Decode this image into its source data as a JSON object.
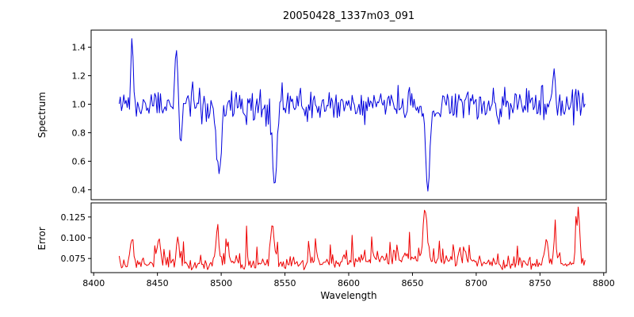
{
  "figure": {
    "title": "20050428_1337m03_091",
    "xlabel": "Wavelength",
    "ylabel_top": "Spectrum",
    "ylabel_bottom": "Error"
  },
  "chart_data": {
    "type": "line",
    "title": "20050428_1337m03_091",
    "xlabel": "Wavelength",
    "legend": "none",
    "grid": false,
    "xlim": [
      8398,
      8802
    ],
    "x_ticks": [
      8400,
      8450,
      8500,
      8550,
      8600,
      8650,
      8700,
      8750,
      8800
    ],
    "x_tick_labels": [
      "8400",
      "8450",
      "8500",
      "8550",
      "8600",
      "8650",
      "8700",
      "8750",
      "8800"
    ],
    "x_start": 8420,
    "x_end": 8786,
    "dx": 0.9,
    "seed": 20050428,
    "panels": [
      {
        "name": "spectrum",
        "ylabel": "Spectrum",
        "color": "#0000dd",
        "linewidth": 1,
        "ylim": [
          0.33,
          1.52
        ],
        "yticks": [
          0.4,
          0.6,
          0.8,
          1.0,
          1.2,
          1.4
        ],
        "ytick_labels": [
          "0.4",
          "0.6",
          "0.8",
          "1.0",
          "1.2",
          "1.4"
        ],
        "baseline": 1.0,
        "noise_sigma": 0.058,
        "skew": 0,
        "clamp": [
          0.36,
          1.47
        ],
        "features": [
          {
            "center": 8430,
            "amp": 0.44,
            "sigma": 0.9
          },
          {
            "center": 8465,
            "amp": 0.4,
            "sigma": 0.9
          },
          {
            "center": 8468.5,
            "amp": -0.27,
            "sigma": 0.9
          },
          {
            "center": 8498,
            "amp": -0.57,
            "sigma": 1.7
          },
          {
            "center": 8542,
            "amp": -0.6,
            "sigma": 1.8
          },
          {
            "center": 8662,
            "amp": -0.63,
            "sigma": 1.7
          },
          {
            "center": 8761,
            "amp": 0.31,
            "sigma": 0.9
          }
        ]
      },
      {
        "name": "error",
        "ylabel": "Error",
        "color": "#ee0000",
        "linewidth": 1,
        "ylim": [
          0.058,
          0.142
        ],
        "yticks": [
          0.075,
          0.1,
          0.125
        ],
        "ytick_labels": [
          "0.075",
          "0.100",
          "0.125"
        ],
        "baseline": 0.067,
        "noise_sigma": 0.0032,
        "skew": 0.006,
        "clamp": [
          0.059,
          0.137
        ],
        "features": [
          {
            "center": 8430,
            "amp": 0.033,
            "sigma": 1.2
          },
          {
            "center": 8451,
            "amp": 0.03,
            "sigma": 1.5
          },
          {
            "center": 8466,
            "amp": 0.028,
            "sigma": 1.2
          },
          {
            "center": 8497,
            "amp": 0.034,
            "sigma": 1.5
          },
          {
            "center": 8505,
            "amp": 0.027,
            "sigma": 1.2
          },
          {
            "center": 8540,
            "amp": 0.045,
            "sigma": 1.5
          },
          {
            "center": 8640,
            "amp": 0.008,
            "sigma": 40
          },
          {
            "center": 8660,
            "amp": 0.058,
            "sigma": 1.6
          },
          {
            "center": 8755,
            "amp": 0.027,
            "sigma": 1.5
          },
          {
            "center": 8762,
            "amp": 0.03,
            "sigma": 1.2
          },
          {
            "center": 8780,
            "amp": 0.062,
            "sigma": 1.2
          }
        ]
      }
    ]
  }
}
